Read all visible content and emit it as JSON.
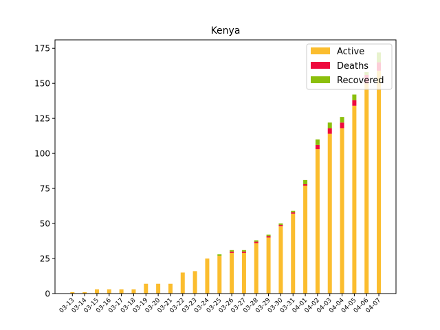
{
  "chart_data": {
    "type": "bar",
    "stacked": true,
    "title": "Kenya",
    "xlabel": "",
    "ylabel": "",
    "ylim": [
      0,
      181
    ],
    "yticks": [
      0,
      25,
      50,
      75,
      100,
      125,
      150,
      175
    ],
    "legend_position": "top-right",
    "grid": false,
    "categories": [
      "03-13",
      "03-14",
      "03-15",
      "03-16",
      "03-17",
      "03-18",
      "03-19",
      "03-20",
      "03-21",
      "03-22",
      "03-23",
      "03-24",
      "03-25",
      "03-26",
      "03-27",
      "03-28",
      "03-29",
      "03-30",
      "03-31",
      "04-01",
      "04-02",
      "04-03",
      "04-04",
      "04-05",
      "04-06",
      "04-07"
    ],
    "series": [
      {
        "name": "Active",
        "color": "#fbbd2e",
        "values": [
          1,
          1,
          3,
          3,
          3,
          3,
          7,
          7,
          7,
          15,
          16,
          25,
          27,
          29,
          29,
          36,
          40,
          48,
          57,
          77,
          103,
          114,
          118,
          134,
          150,
          159
        ]
      },
      {
        "name": "Deaths",
        "color": "#ee0a3e",
        "values": [
          0,
          0,
          0,
          0,
          0,
          0,
          0,
          0,
          0,
          0,
          0,
          0,
          0,
          1,
          1,
          1,
          1,
          1,
          1,
          1,
          3,
          4,
          4,
          4,
          6,
          6
        ]
      },
      {
        "name": "Recovered",
        "color": "#8bbf0c",
        "values": [
          0,
          0,
          0,
          0,
          0,
          0,
          0,
          0,
          0,
          0,
          0,
          0,
          1,
          1,
          1,
          1,
          1,
          1,
          1,
          3,
          4,
          4,
          4,
          4,
          2,
          7
        ]
      }
    ]
  }
}
